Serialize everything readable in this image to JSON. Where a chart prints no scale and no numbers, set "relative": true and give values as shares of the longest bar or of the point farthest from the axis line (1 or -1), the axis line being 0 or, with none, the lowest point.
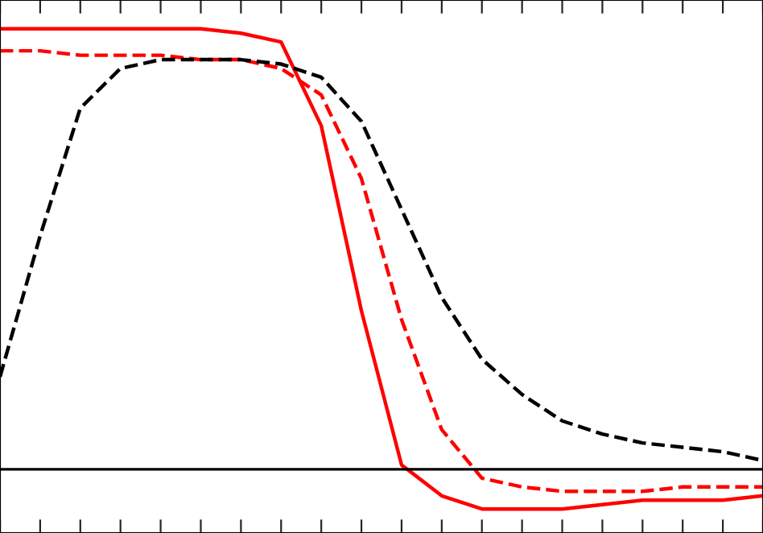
{
  "chart_data": {
    "type": "line",
    "relative": true,
    "grid": false,
    "marker": "none",
    "categories": [
      null,
      null,
      null,
      null,
      null,
      null,
      null,
      null,
      null,
      null,
      null,
      null,
      null,
      null,
      null,
      null,
      null,
      null,
      null,
      null
    ],
    "series": [
      {
        "color": "#ff0000",
        "line_style": "solid",
        "values": [
          1.0,
          1.0,
          1.0,
          1.0,
          1.0,
          1.0,
          0.99,
          0.97,
          0.78,
          0.36,
          0.01,
          -0.06,
          -0.09,
          -0.09,
          -0.09,
          -0.08,
          -0.07,
          -0.07,
          -0.07,
          -0.06
        ]
      },
      {
        "color": "#ff0000",
        "line_style": "dashed",
        "values": [
          0.95,
          0.95,
          0.94,
          0.94,
          0.94,
          0.93,
          0.93,
          0.91,
          0.85,
          0.66,
          0.34,
          0.09,
          -0.02,
          -0.04,
          -0.05,
          -0.05,
          -0.05,
          -0.04,
          -0.04,
          -0.04
        ]
      },
      {
        "color": "#000000",
        "line_style": "dashed",
        "values": [
          0.21,
          0.53,
          0.82,
          0.91,
          0.93,
          0.93,
          0.93,
          0.92,
          0.89,
          0.79,
          0.59,
          0.39,
          0.25,
          0.17,
          0.11,
          0.08,
          0.06,
          0.05,
          0.04,
          0.02
        ]
      }
    ]
  }
}
